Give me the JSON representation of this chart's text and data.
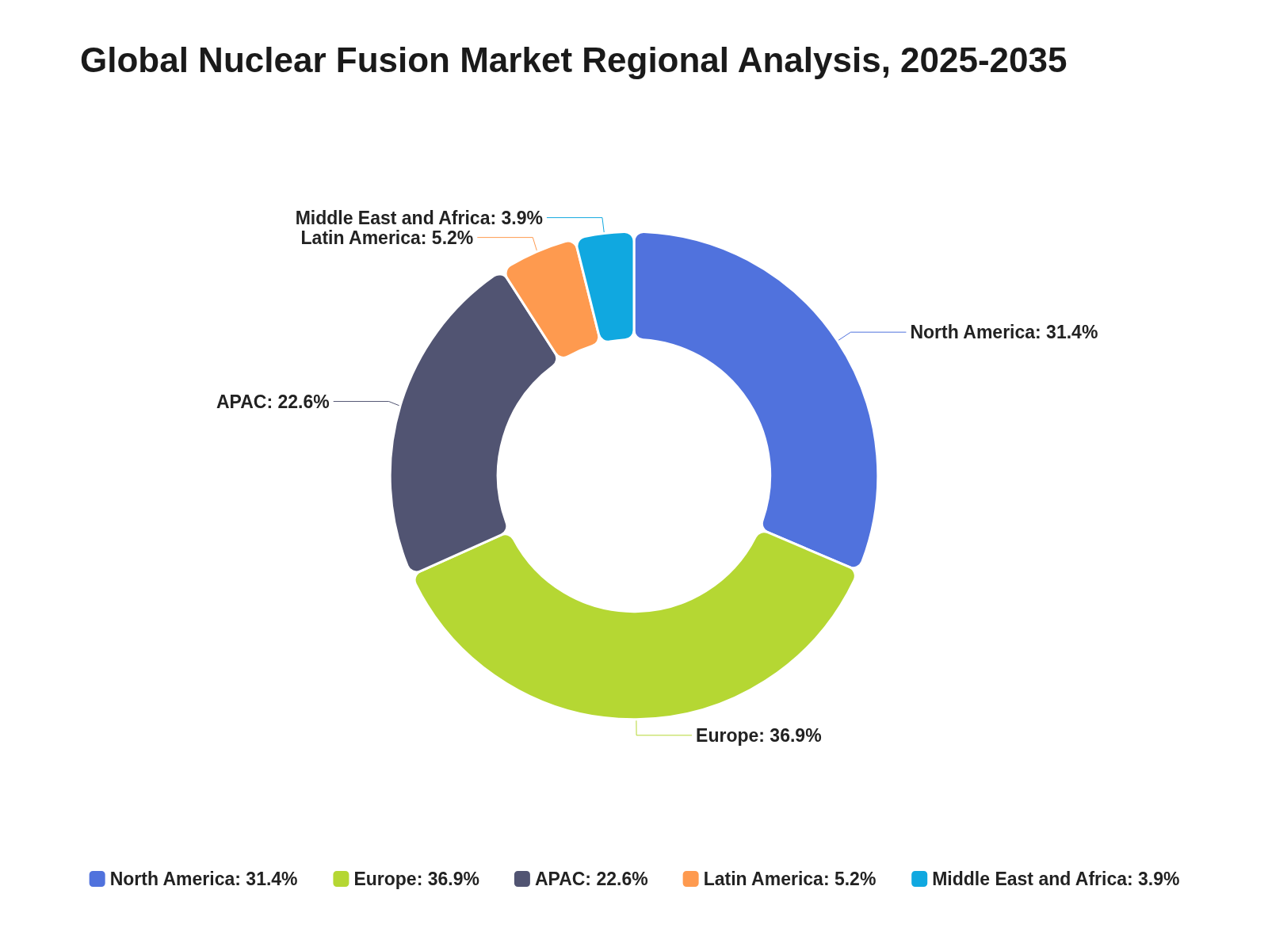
{
  "chart_data": {
    "type": "donut",
    "title": "Global Nuclear Fusion Market Regional Analysis, 2025-2035",
    "categories": [
      "North America",
      "Europe",
      "APAC",
      "Latin America",
      "Middle East and Africa"
    ],
    "values": [
      31.4,
      36.9,
      22.6,
      5.2,
      3.9
    ],
    "value_labels": [
      "31.4%",
      "36.9%",
      "22.6%",
      "5.2%",
      "3.9%"
    ],
    "colors": [
      "#5072dd",
      "#b5d733",
      "#515472",
      "#fe9a4f",
      "#10a8e0"
    ],
    "legend": "bottom"
  }
}
